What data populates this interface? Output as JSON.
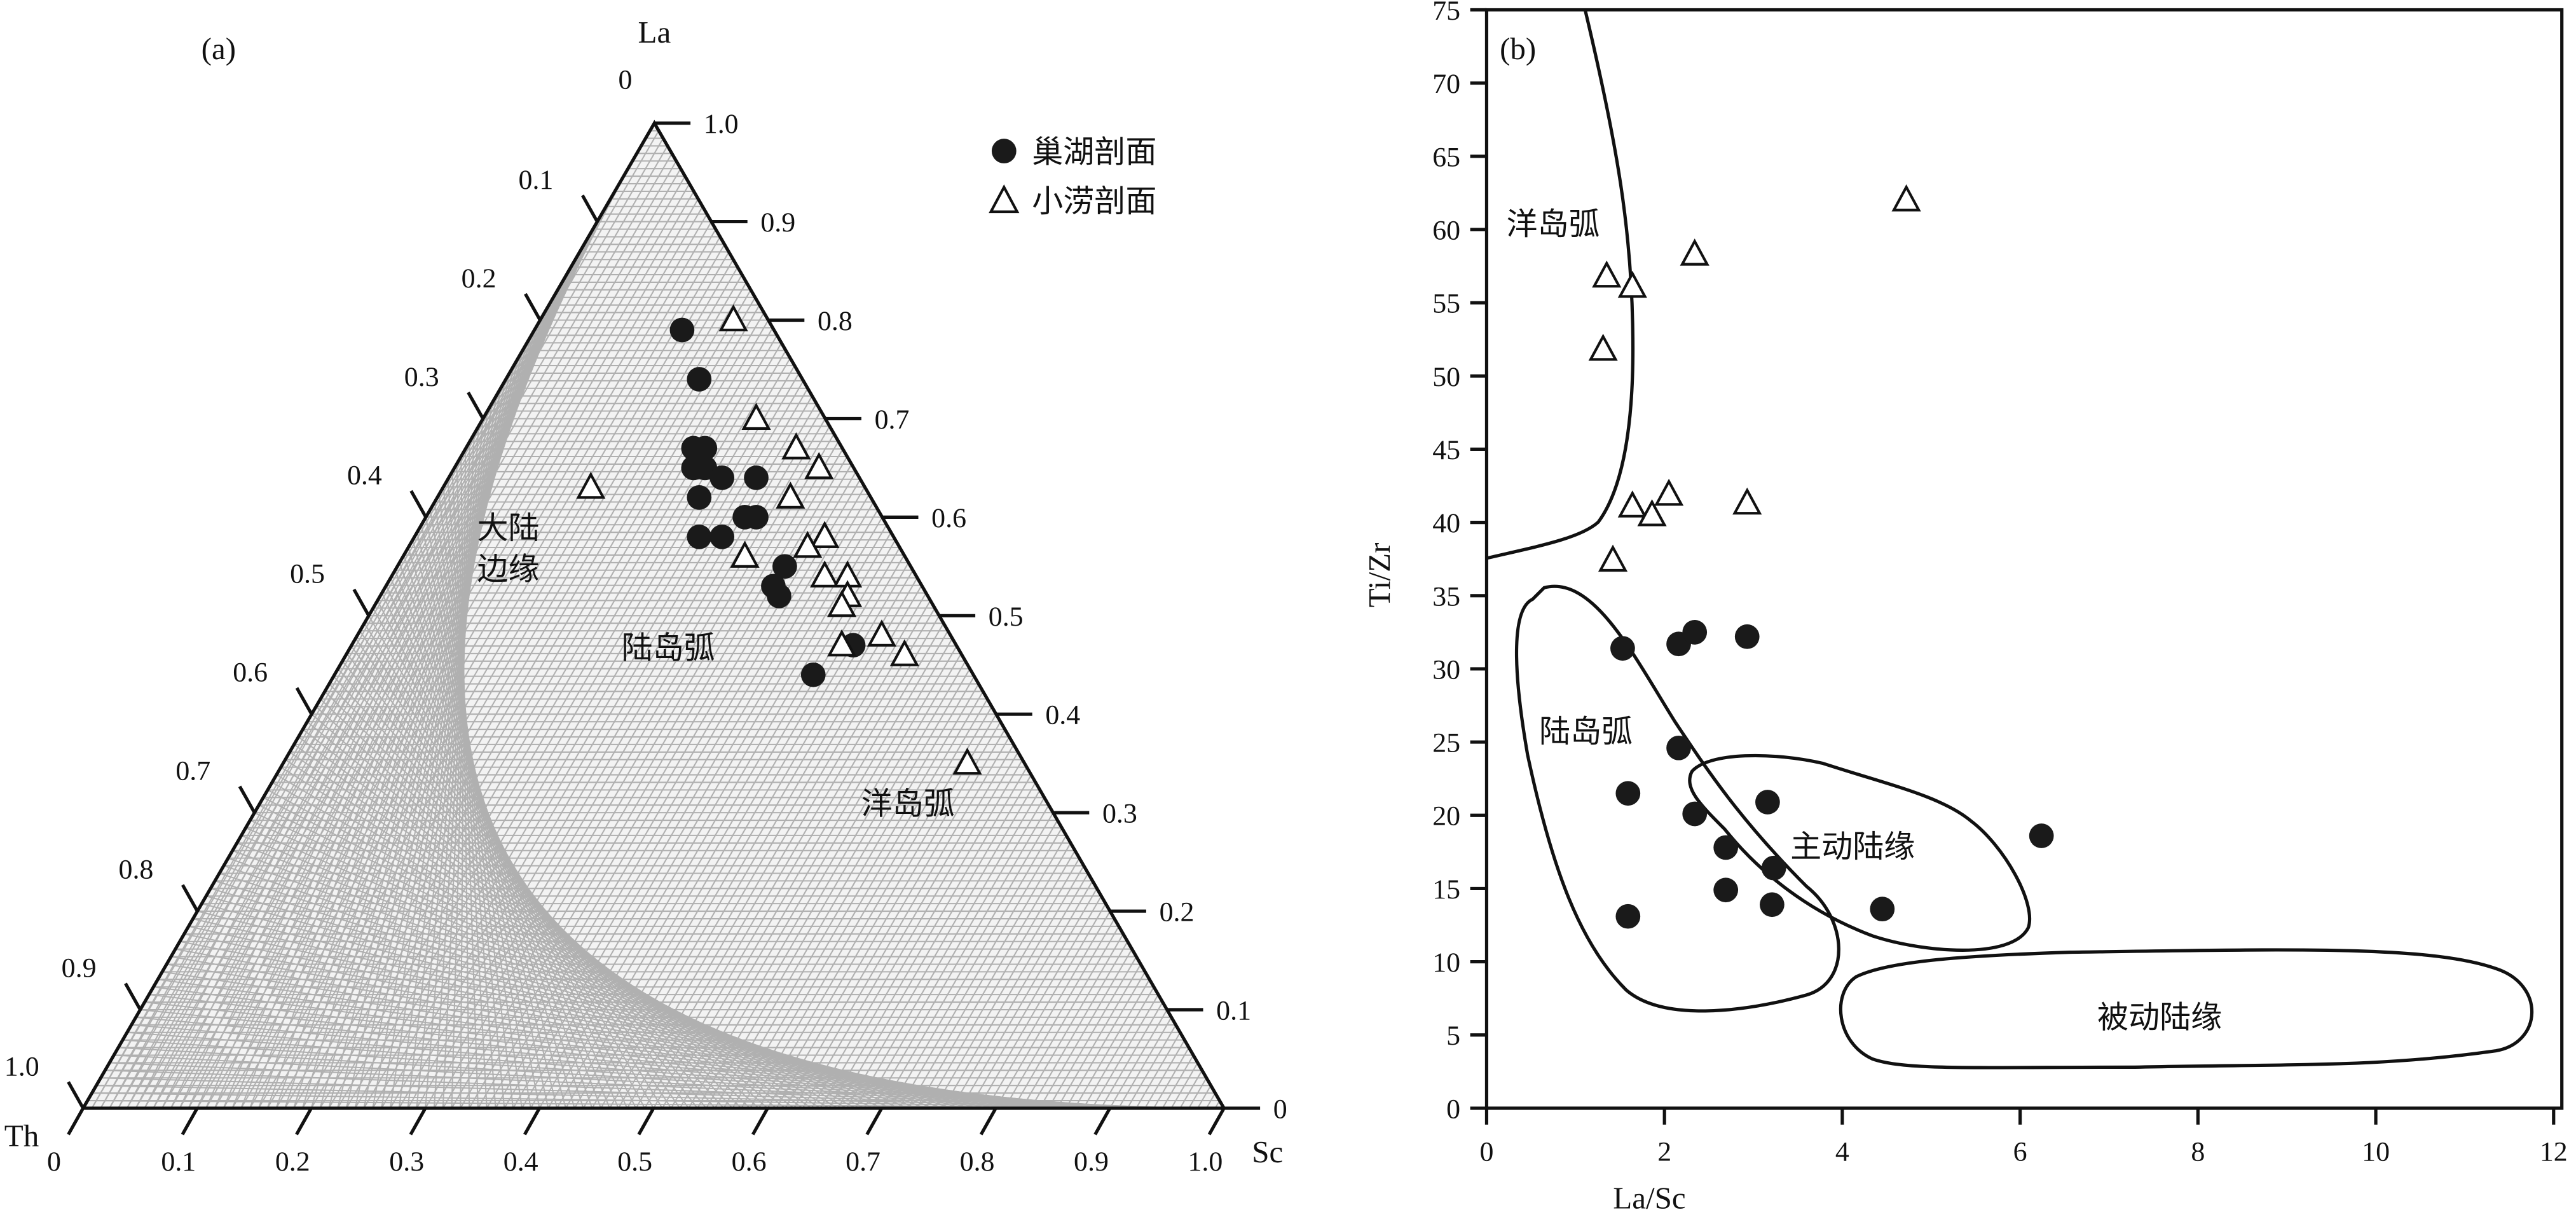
{
  "chart_data": [
    {
      "type": "ternary-scatter",
      "panel_label": "(a)",
      "vertices": {
        "top": "La",
        "left": "Th",
        "right": "Sc"
      },
      "apex_zero_label": "0",
      "left_axis_ticks": [
        "0.1",
        "0.2",
        "0.3",
        "0.4",
        "0.5",
        "0.6",
        "0.7",
        "0.8",
        "0.9",
        "1.0"
      ],
      "right_axis_ticks": [
        "1.0",
        "0.9",
        "0.8",
        "0.7",
        "0.6",
        "0.5",
        "0.4",
        "0.3",
        "0.2",
        "0.1",
        "0"
      ],
      "bottom_axis_ticks": [
        "0",
        "0.1",
        "0.2",
        "0.3",
        "0.4",
        "0.5",
        "0.6",
        "0.7",
        "0.8",
        "0.9",
        "1.0"
      ],
      "grid": true,
      "legend_placement": "top-right",
      "fields": [
        {
          "label_line1": "大陆",
          "label_line2": "边缘"
        },
        {
          "label": "陆岛弧"
        },
        {
          "label": "洋岛弧"
        }
      ],
      "series": [
        {
          "name": "巢湖剖面",
          "marker": "filled-circle",
          "color": "#1a1a1a",
          "points_La_Th_Sc": [
            [
              0.79,
              0.08,
              0.13
            ],
            [
              0.74,
              0.09,
              0.17
            ],
            [
              0.67,
              0.13,
              0.2
            ],
            [
              0.67,
              0.12,
              0.21
            ],
            [
              0.65,
              0.14,
              0.21
            ],
            [
              0.65,
              0.13,
              0.22
            ],
            [
              0.64,
              0.12,
              0.24
            ],
            [
              0.64,
              0.09,
              0.27
            ],
            [
              0.62,
              0.15,
              0.23
            ],
            [
              0.6,
              0.11,
              0.29
            ],
            [
              0.6,
              0.12,
              0.28
            ],
            [
              0.58,
              0.15,
              0.27
            ],
            [
              0.58,
              0.17,
              0.25
            ],
            [
              0.55,
              0.11,
              0.34
            ],
            [
              0.53,
              0.13,
              0.34
            ],
            [
              0.52,
              0.13,
              0.35
            ],
            [
              0.47,
              0.09,
              0.44
            ],
            [
              0.44,
              0.14,
              0.42
            ]
          ]
        },
        {
          "name": "小涝剖面",
          "marker": "open-triangle",
          "color": "#1a1a1a",
          "points_La_Th_Sc": [
            [
              0.8,
              0.03,
              0.17
            ],
            [
              0.7,
              0.06,
              0.24
            ],
            [
              0.67,
              0.04,
              0.29
            ],
            [
              0.65,
              0.03,
              0.32
            ],
            [
              0.62,
              0.07,
              0.31
            ],
            [
              0.63,
              0.24,
              0.13
            ],
            [
              0.58,
              0.06,
              0.36
            ],
            [
              0.58,
              0.06,
              0.36
            ],
            [
              0.57,
              0.08,
              0.35
            ],
            [
              0.56,
              0.14,
              0.3
            ],
            [
              0.54,
              0.08,
              0.38
            ],
            [
              0.54,
              0.06,
              0.4
            ],
            [
              0.52,
              0.07,
              0.41
            ],
            [
              0.51,
              0.08,
              0.41
            ],
            [
              0.48,
              0.06,
              0.46
            ],
            [
              0.46,
              0.05,
              0.49
            ],
            [
              0.47,
              0.1,
              0.43
            ],
            [
              0.35,
              0.05,
              0.6
            ]
          ]
        }
      ]
    },
    {
      "type": "scatter",
      "panel_label": "(b)",
      "xlabel": "La/Sc",
      "ylabel": "Ti/Zr",
      "xlim": [
        0,
        12
      ],
      "ylim": [
        0,
        75
      ],
      "xticks": [
        "0",
        "2",
        "4",
        "6",
        "8",
        "10",
        "12"
      ],
      "yticks": [
        "0",
        "5",
        "10",
        "15",
        "20",
        "25",
        "30",
        "35",
        "40",
        "45",
        "50",
        "55",
        "60",
        "65",
        "70",
        "75"
      ],
      "grid": false,
      "fields": [
        "洋岛弧",
        "陆岛弧",
        "主动陆缘",
        "被动陆缘"
      ],
      "series": [
        {
          "name": "巢湖剖面",
          "marker": "filled-circle",
          "points": [
            [
              1.53,
              31.4
            ],
            [
              2.16,
              31.7
            ],
            [
              2.34,
              32.5
            ],
            [
              2.93,
              32.2
            ],
            [
              2.16,
              24.6
            ],
            [
              1.59,
              21.5
            ],
            [
              2.34,
              20.1
            ],
            [
              3.16,
              20.9
            ],
            [
              2.69,
              17.8
            ],
            [
              3.23,
              16.4
            ],
            [
              2.69,
              14.9
            ],
            [
              3.21,
              13.9
            ],
            [
              4.45,
              13.6
            ],
            [
              1.59,
              13.1
            ],
            [
              6.24,
              18.6
            ]
          ]
        },
        {
          "name": "小涝剖面",
          "marker": "open-triangle",
          "points": [
            [
              1.35,
              56.8
            ],
            [
              1.64,
              56.1
            ],
            [
              1.31,
              51.8
            ],
            [
              2.34,
              58.3
            ],
            [
              4.72,
              62.0
            ],
            [
              1.64,
              41.1
            ],
            [
              2.05,
              41.9
            ],
            [
              1.86,
              40.5
            ],
            [
              2.93,
              41.3
            ],
            [
              1.42,
              37.4
            ]
          ]
        }
      ]
    }
  ]
}
